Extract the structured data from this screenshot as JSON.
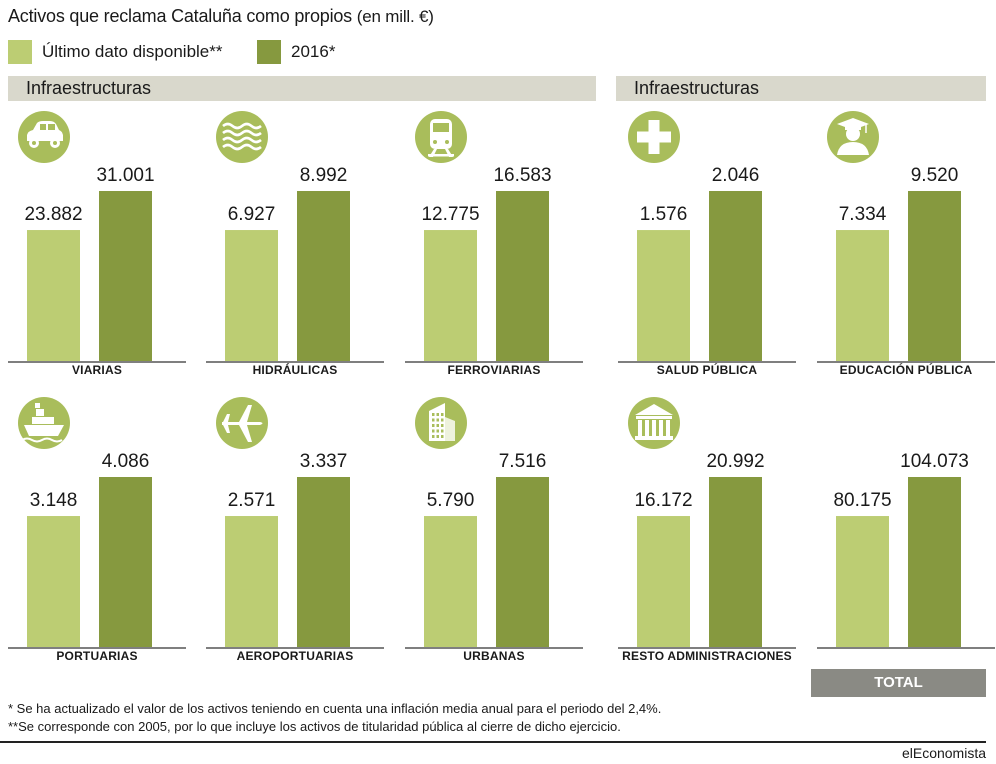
{
  "title": "Activos que reclama Cataluña como propios",
  "title_units": "(en mill. €)",
  "colors": {
    "latest": "#bccd73",
    "y2016": "#86993f",
    "icon_bg": "#a9bd5b",
    "band": "#d9d8cc",
    "total_band": "#8a8a84"
  },
  "legend": [
    {
      "label": "Último dato disponible**",
      "color": "#bccd73"
    },
    {
      "label": "2016*",
      "color": "#86993f"
    }
  ],
  "sections": [
    {
      "label": "Infraestructuras"
    },
    {
      "label": "Infraestructuras"
    }
  ],
  "chart_data": {
    "type": "bar",
    "series": [
      {
        "name": "Último dato disponible**"
      },
      {
        "name": "2016*"
      }
    ],
    "panels": [
      {
        "label": "VIARIAS",
        "icon": "car-icon",
        "values": [
          23882,
          31001
        ],
        "value_labels": [
          "23.882",
          "31.001"
        ]
      },
      {
        "label": "HIDRÁULICAS",
        "icon": "water-waves-icon",
        "values": [
          6927,
          8992
        ],
        "value_labels": [
          "6.927",
          "8.992"
        ]
      },
      {
        "label": "FERROVIARIAS",
        "icon": "train-icon",
        "values": [
          12775,
          16583
        ],
        "value_labels": [
          "12.775",
          "16.583"
        ]
      },
      {
        "label": "SALUD PÚBLICA",
        "icon": "medical-cross-icon",
        "values": [
          1576,
          2046
        ],
        "value_labels": [
          "1.576",
          "2.046"
        ]
      },
      {
        "label": "EDUCACIÓN PÚBLICA",
        "icon": "graduate-icon",
        "values": [
          7334,
          9520
        ],
        "value_labels": [
          "7.334",
          "9.520"
        ]
      },
      {
        "label": "PORTUARIAS",
        "icon": "ship-icon",
        "values": [
          3148,
          4086
        ],
        "value_labels": [
          "3.148",
          "4.086"
        ]
      },
      {
        "label": "AEROPORTUARIAS",
        "icon": "airplane-icon",
        "values": [
          2571,
          3337
        ],
        "value_labels": [
          "2.571",
          "3.337"
        ]
      },
      {
        "label": "URBANAS",
        "icon": "building-icon",
        "values": [
          5790,
          7516
        ],
        "value_labels": [
          "5.790",
          "7.516"
        ]
      },
      {
        "label": "RESTO ADMINISTRACIONES",
        "icon": "government-building-icon",
        "values": [
          16172,
          20992
        ],
        "value_labels": [
          "16.172",
          "20.992"
        ]
      },
      {
        "label": "TOTAL",
        "icon": "",
        "values": [
          80175,
          104073
        ],
        "value_labels": [
          "80.175",
          "104.073"
        ]
      }
    ]
  },
  "footnotes": [
    "* Se ha actualizado el valor de los activos teniendo en cuenta una inflación media anual para el periodo del 2,4%.",
    "**Se corresponde con 2005, por lo que incluye los activos de titularidad pública al cierre de dicho ejercicio."
  ],
  "source": "elEconomista"
}
